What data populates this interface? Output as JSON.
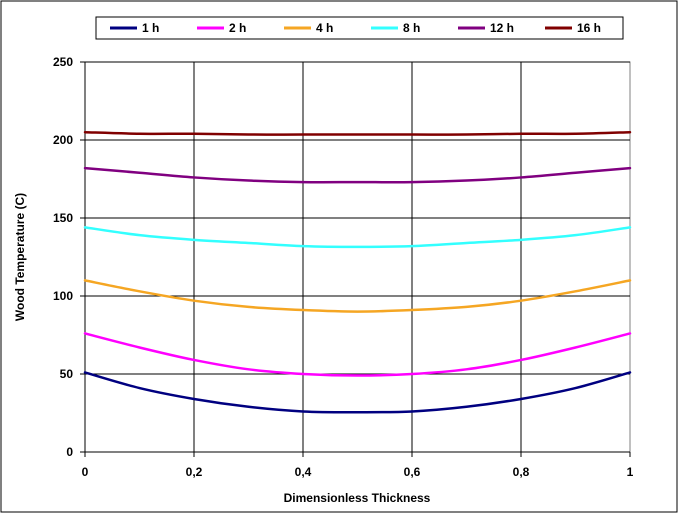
{
  "chart_data": {
    "type": "line",
    "title": "",
    "xlabel": "Dimensionless Thickness",
    "ylabel": "Wood Temperature (C)",
    "xlim": [
      0,
      1
    ],
    "ylim": [
      0,
      250
    ],
    "x_ticks": [
      "0",
      "0,2",
      "0,4",
      "0,6",
      "0,8",
      "1"
    ],
    "y_ticks": [
      "0",
      "50",
      "100",
      "150",
      "200",
      "250"
    ],
    "grid": true,
    "legend_position": "top",
    "x": [
      0,
      0.1,
      0.2,
      0.3,
      0.4,
      0.5,
      0.6,
      0.7,
      0.8,
      0.9,
      1
    ],
    "series": [
      {
        "name": "1 h",
        "color": "#000080",
        "values": [
          51,
          41,
          34,
          29,
          26,
          25.5,
          26,
          29,
          34,
          41,
          51
        ]
      },
      {
        "name": "2 h",
        "color": "#FF00FF",
        "values": [
          76,
          67,
          59,
          53,
          50,
          49,
          50,
          53,
          59,
          67,
          76
        ]
      },
      {
        "name": "4 h",
        "color": "#F5A623",
        "values": [
          110,
          103,
          97,
          93,
          91,
          90,
          91,
          93,
          97,
          103,
          110
        ]
      },
      {
        "name": "8 h",
        "color": "#33FFFF",
        "values": [
          144,
          139,
          136,
          134,
          132,
          131.5,
          132,
          134,
          136,
          139,
          144
        ]
      },
      {
        "name": "12 h",
        "color": "#800080",
        "values": [
          182,
          179,
          176,
          174,
          173,
          173,
          173,
          174,
          176,
          179,
          182
        ]
      },
      {
        "name": "16 h",
        "color": "#800000",
        "values": [
          205,
          204,
          204,
          203.5,
          203.5,
          203.5,
          203.5,
          203.5,
          204,
          204,
          205
        ]
      }
    ]
  }
}
